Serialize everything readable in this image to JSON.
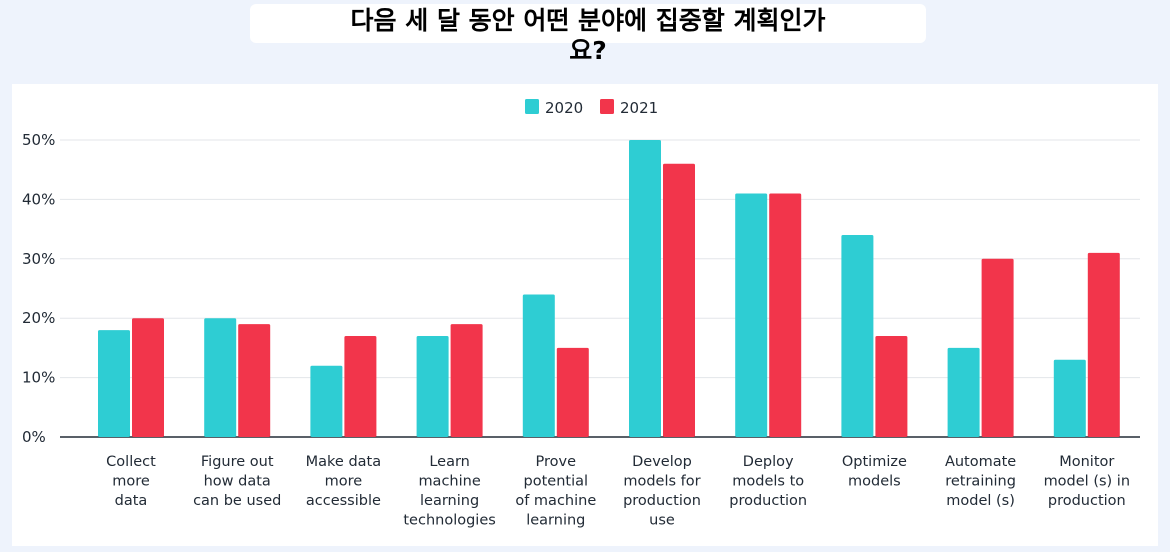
{
  "title": "다음 세 달 동안 어떤 분야에 집중할 계획인가\n요?",
  "chart_data": {
    "type": "bar",
    "categories": [
      [
        "Collect",
        "more",
        "data"
      ],
      [
        "Figure out",
        "how data",
        "can be used"
      ],
      [
        "Make data",
        "more",
        "accessible"
      ],
      [
        "Learn",
        "machine",
        "learning",
        "technologies"
      ],
      [
        "Prove",
        "potential",
        "of machine",
        "learning"
      ],
      [
        "Develop",
        "models for",
        "production",
        "use"
      ],
      [
        "Deploy",
        "models to",
        "production"
      ],
      [
        "Optimize",
        "models"
      ],
      [
        "Automate",
        "retraining",
        "model (s)"
      ],
      [
        "Monitor",
        "model (s) in",
        "production"
      ]
    ],
    "series": [
      {
        "name": "2020",
        "color": "#2ecdd3",
        "values": [
          18,
          20,
          12,
          17,
          24,
          50,
          41,
          34,
          15,
          13
        ]
      },
      {
        "name": "2021",
        "color": "#f2354b",
        "values": [
          20,
          19,
          17,
          19,
          15,
          46,
          41,
          17,
          30,
          31
        ]
      }
    ],
    "yticks": [
      "0%",
      "10%",
      "20%",
      "30%",
      "40%",
      "50%"
    ],
    "ylim": [
      0,
      50
    ],
    "grid": true,
    "legend": "top-center"
  }
}
